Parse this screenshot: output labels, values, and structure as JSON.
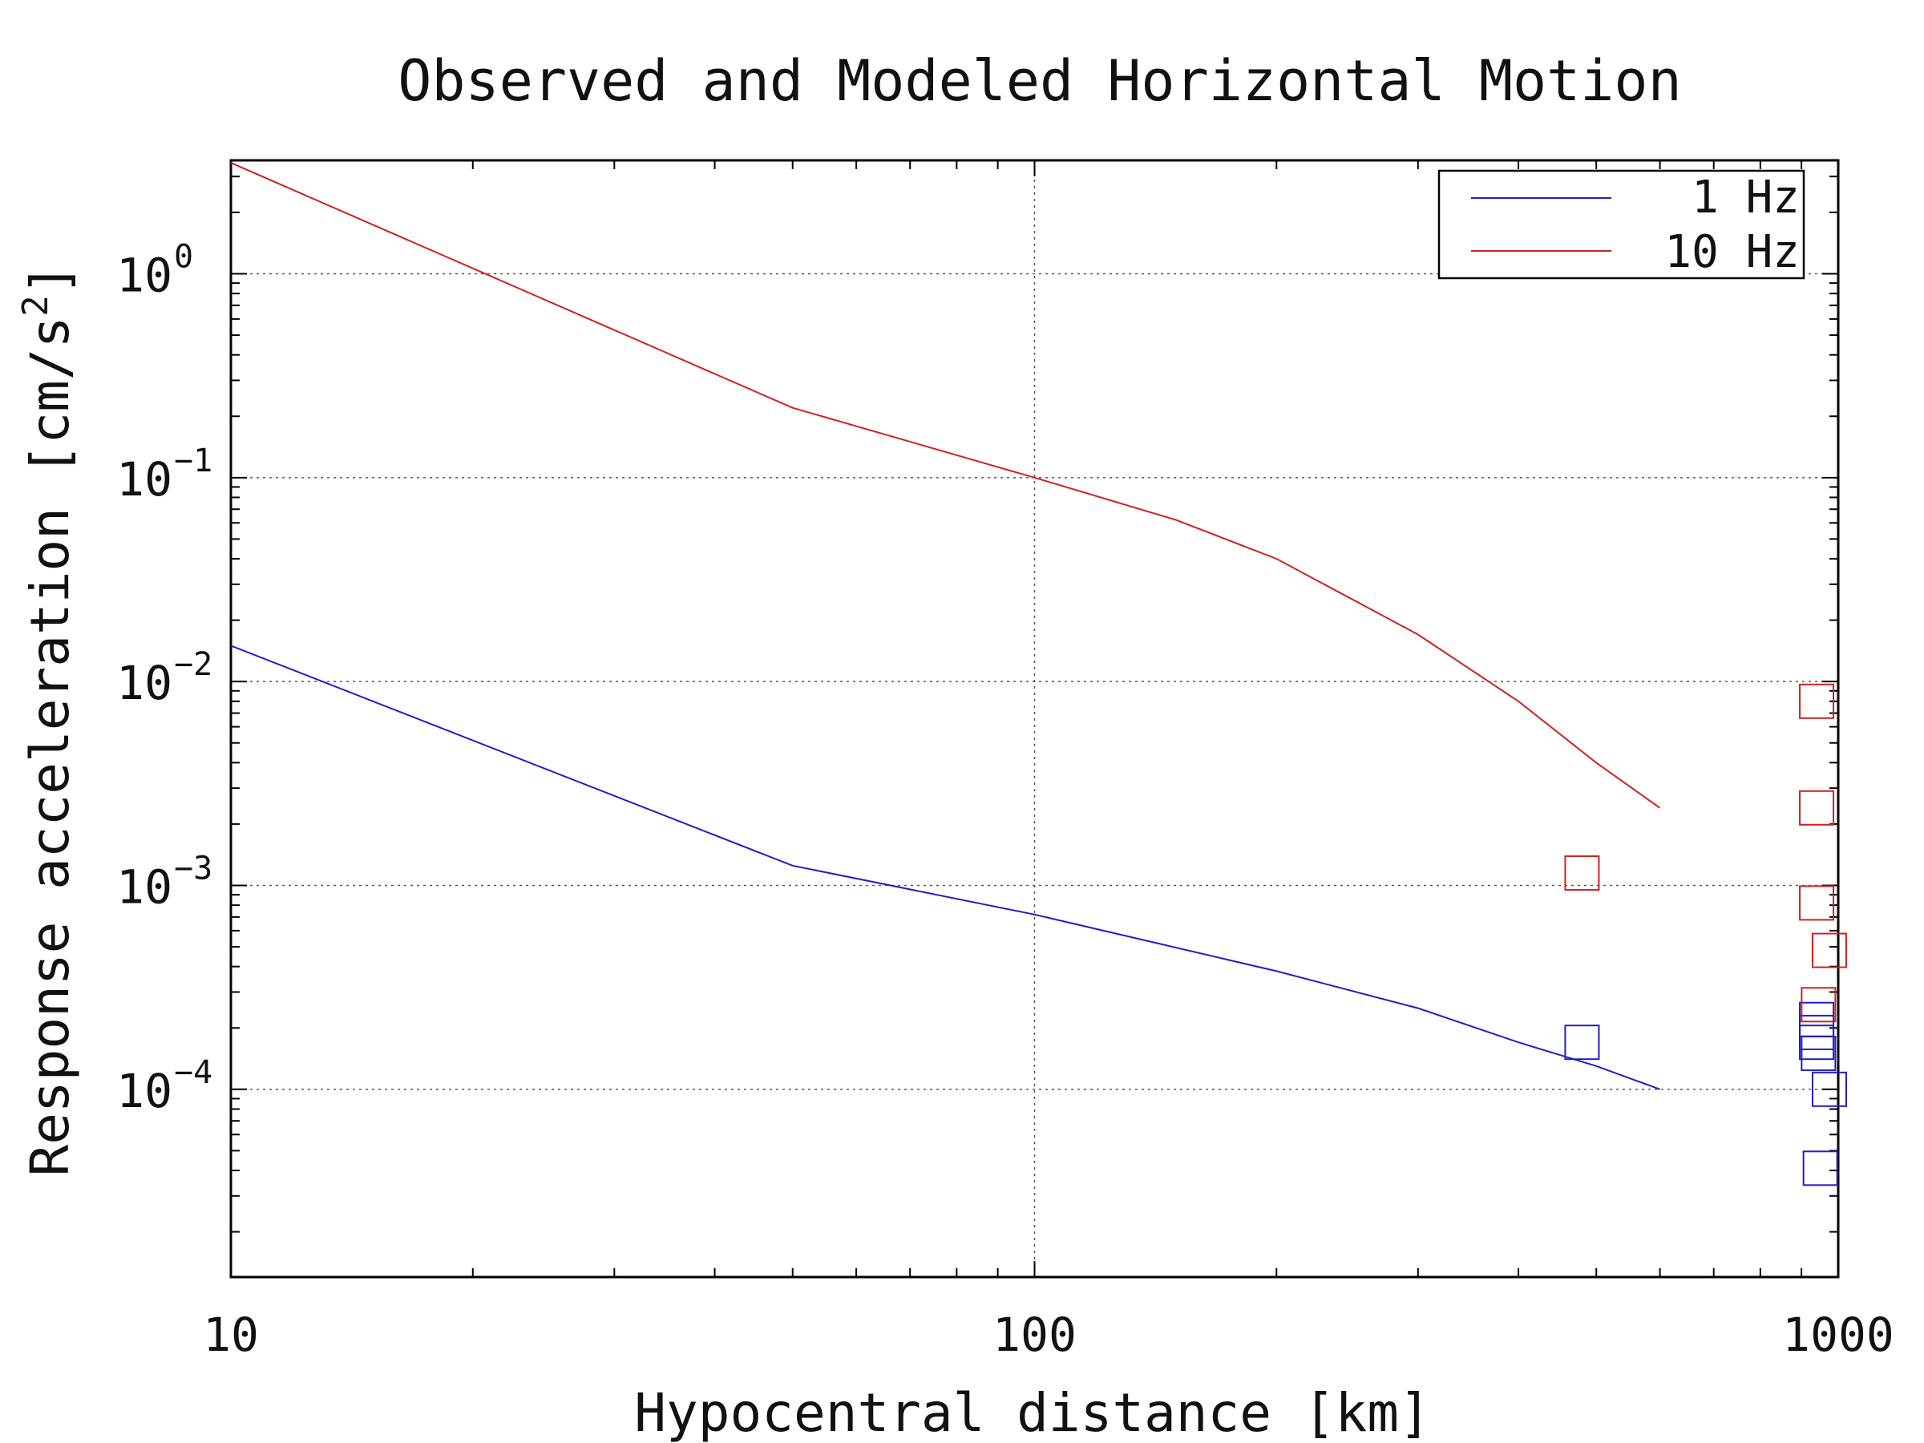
{
  "chart_data": {
    "type": "line",
    "title": "Observed and Modeled Horizontal Motion",
    "xlabel": "Hypocentral distance [km]",
    "ylabel_base": "Response acceleration [cm/s",
    "ylabel_sup": "2",
    "ylabel_tail": "]",
    "x_scale": "log",
    "y_scale": "log",
    "xlim": [
      10,
      1000
    ],
    "ylim": [
      1.2e-05,
      3.6
    ],
    "grid": true,
    "legend_position": "top-right",
    "x_ticks": [
      {
        "value": 10,
        "label": "10"
      },
      {
        "value": 100,
        "label": "100"
      },
      {
        "value": 1000,
        "label": "1000"
      }
    ],
    "y_ticks": [
      {
        "value": 1,
        "base": "10",
        "exp": "0"
      },
      {
        "value": 0.1,
        "base": "10",
        "exp": "−1"
      },
      {
        "value": 0.01,
        "base": "10",
        "exp": "−2"
      },
      {
        "value": 0.001,
        "base": "10",
        "exp": "−3"
      },
      {
        "value": 0.0001,
        "base": "10",
        "exp": "−4"
      }
    ],
    "series": [
      {
        "name": "1 Hz",
        "color": "#1f1fc8",
        "line": {
          "x": [
            10,
            50,
            100,
            200,
            300,
            400,
            500,
            600
          ],
          "y": [
            0.015,
            0.00125,
            0.00072,
            0.00038,
            0.00025,
            0.00017,
            0.00013,
            0.0001
          ]
        },
        "observed": {
          "x": [
            480,
            940,
            940,
            940,
            945,
            950,
            975
          ],
          "y": [
            0.00017,
            0.00022,
            0.00019,
            0.00017,
            0.00015,
            4.1e-05,
            0.0001
          ]
        }
      },
      {
        "name": "10 Hz",
        "color": "#d22020",
        "line": {
          "x": [
            10,
            50,
            100,
            150,
            200,
            300,
            400,
            500,
            600
          ],
          "y": [
            3.5,
            0.22,
            0.1,
            0.062,
            0.04,
            0.017,
            0.008,
            0.004,
            0.0024
          ]
        },
        "observed": {
          "x": [
            480,
            940,
            940,
            940,
            945,
            975
          ],
          "y": [
            0.00115,
            0.008,
            0.0024,
            0.00082,
            0.00026,
            0.00048
          ]
        }
      }
    ]
  }
}
